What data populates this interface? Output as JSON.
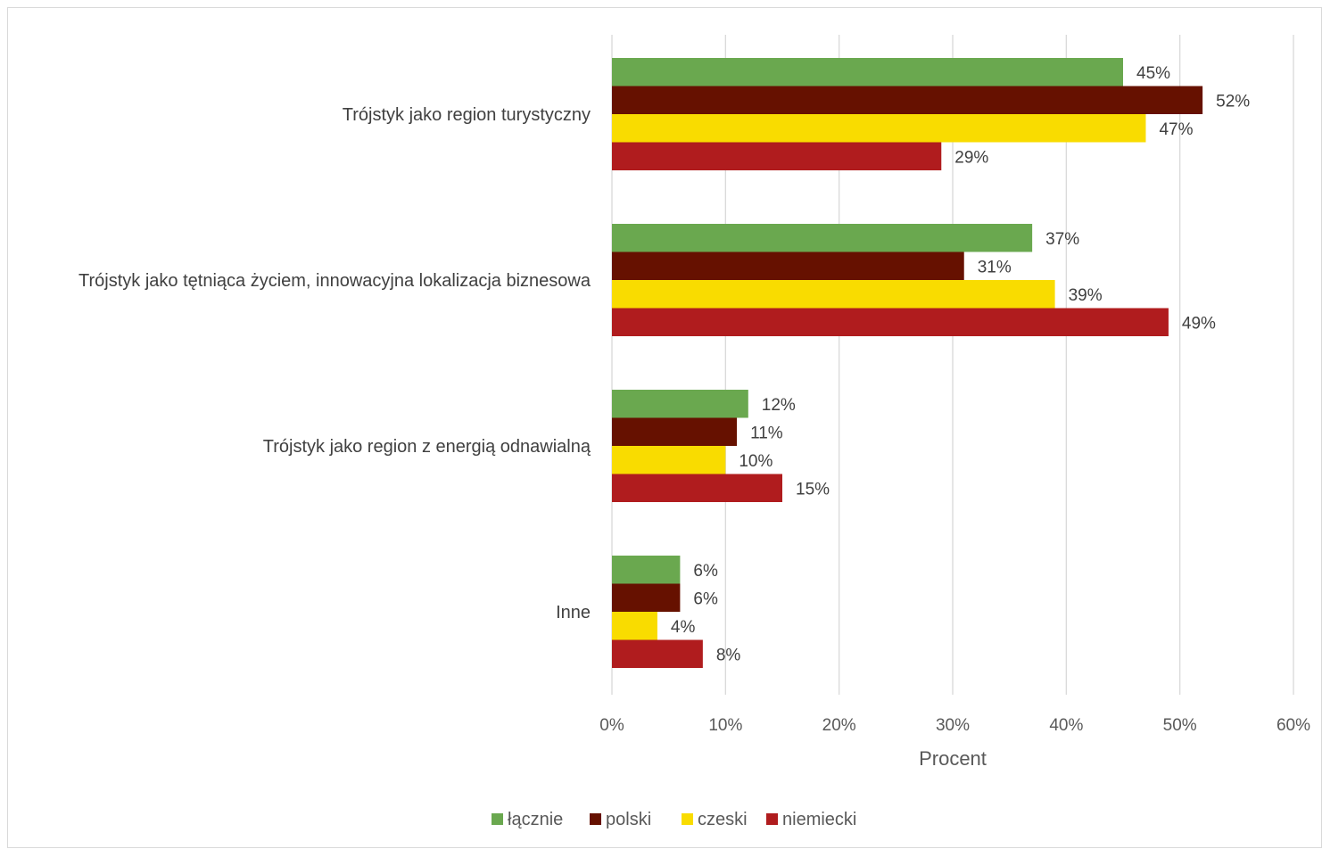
{
  "chart_data": {
    "type": "bar",
    "orientation": "horizontal",
    "categories": [
      "Trójstyk jako region turystyczny",
      "Trójstyk jako tętniąca życiem, innowacyjna lokalizacja biznesowa",
      "Trójstyk jako region z energią odnawialną",
      "Inne"
    ],
    "series": [
      {
        "name": "łącznie",
        "color": "#6aa84f",
        "values": [
          45,
          37,
          12,
          6
        ],
        "labels": [
          "45%",
          "37%",
          "12%",
          "6%"
        ]
      },
      {
        "name": "polski",
        "color": "#661100",
        "values": [
          52,
          31,
          11,
          6
        ],
        "labels": [
          "52%",
          "31%",
          "11%",
          "6%"
        ]
      },
      {
        "name": "czeski",
        "color": "#f9dc00",
        "values": [
          47,
          39,
          10,
          4
        ],
        "labels": [
          "47%",
          "39%",
          "10%",
          "4%"
        ]
      },
      {
        "name": "niemiecki",
        "color": "#b01c1e",
        "values": [
          29,
          49,
          15,
          8
        ],
        "labels": [
          "29%",
          "49%",
          "15%",
          "8%"
        ]
      }
    ],
    "xlabel": "Procent",
    "ylabel": "",
    "xlim": [
      0,
      60
    ],
    "xticks": [
      "0%",
      "10%",
      "20%",
      "30%",
      "40%",
      "50%",
      "60%"
    ],
    "grid": true,
    "legend_position": "bottom"
  }
}
